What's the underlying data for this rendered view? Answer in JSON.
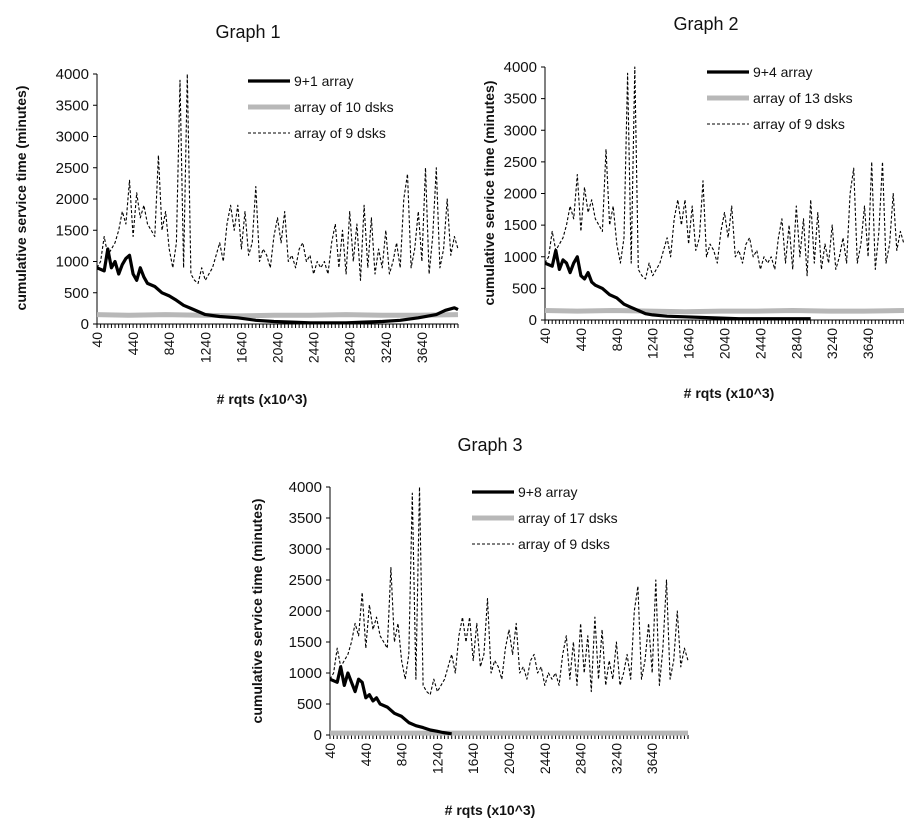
{
  "chart_data": [
    {
      "type": "line",
      "title": "Graph 1",
      "xlabel": "# rqts (x10^3)",
      "ylabel": "cumulative service time (minutes)",
      "ylim": [
        0,
        4000
      ],
      "yticks": [
        "0",
        "500",
        "1000",
        "1500",
        "2000",
        "2500",
        "3000",
        "3500",
        "4000"
      ],
      "xlim": [
        40,
        4040
      ],
      "xticks": [
        "40",
        "440",
        "840",
        "1240",
        "1640",
        "2040",
        "2440",
        "2840",
        "3240",
        "3640"
      ],
      "legend_position": "top-right",
      "series": [
        {
          "name": "9+1 array",
          "style": "thick-black",
          "x": [
            40,
            120,
            160,
            200,
            240,
            280,
            320,
            360,
            400,
            440,
            480,
            520,
            560,
            600,
            680,
            760,
            840,
            920,
            1000,
            1080,
            1160,
            1240,
            1400,
            1600,
            1800,
            2000,
            2200,
            2400,
            2600,
            2800,
            3000,
            3200,
            3400,
            3600,
            3800,
            3900,
            4000,
            4040
          ],
          "y": [
            900,
            850,
            1200,
            900,
            1000,
            800,
            950,
            1050,
            1100,
            800,
            700,
            900,
            750,
            650,
            600,
            500,
            450,
            380,
            300,
            250,
            200,
            150,
            120,
            100,
            60,
            40,
            30,
            20,
            20,
            20,
            30,
            40,
            60,
            100,
            150,
            220,
            260,
            230
          ]
        },
        {
          "name": "array of 10 dsks",
          "style": "thick-gray",
          "x": [
            40,
            400,
            800,
            1200,
            1600,
            2000,
            2400,
            2800,
            3200,
            3600,
            4040
          ],
          "y": [
            150,
            140,
            150,
            140,
            130,
            140,
            140,
            150,
            140,
            140,
            150
          ]
        },
        {
          "name": "array of 9 dsks",
          "style": "dashed-black",
          "x": [
            40,
            80,
            120,
            160,
            200,
            240,
            280,
            320,
            360,
            400,
            440,
            480,
            520,
            560,
            600,
            640,
            680,
            720,
            760,
            800,
            840,
            880,
            920,
            960,
            1000,
            1040,
            1080,
            1120,
            1160,
            1200,
            1240,
            1280,
            1320,
            1360,
            1400,
            1440,
            1480,
            1520,
            1560,
            1600,
            1640,
            1680,
            1720,
            1760,
            1800,
            1840,
            1880,
            1920,
            1960,
            2000,
            2040,
            2080,
            2120,
            2160,
            2200,
            2240,
            2280,
            2320,
            2360,
            2400,
            2440,
            2480,
            2520,
            2560,
            2600,
            2640,
            2680,
            2720,
            2760,
            2800,
            2840,
            2880,
            2920,
            2960,
            3000,
            3040,
            3080,
            3120,
            3160,
            3200,
            3240,
            3280,
            3320,
            3360,
            3400,
            3440,
            3480,
            3520,
            3560,
            3600,
            3640,
            3680,
            3720,
            3760,
            3800,
            3840,
            3880,
            3920,
            3960,
            4000,
            4040
          ],
          "y": [
            900,
            1000,
            1400,
            1100,
            1200,
            1300,
            1500,
            1800,
            1600,
            2300,
            1400,
            2100,
            1700,
            1900,
            1600,
            1500,
            1400,
            2700,
            1500,
            1800,
            1200,
            900,
            1300,
            3900,
            900,
            4000,
            800,
            700,
            650,
            900,
            700,
            800,
            900,
            1100,
            1300,
            1000,
            1600,
            1900,
            1500,
            1900,
            1200,
            1800,
            1100,
            1300,
            2200,
            1000,
            1200,
            1100,
            900,
            1400,
            1700,
            1300,
            1800,
            1000,
            1100,
            900,
            1200,
            1300,
            1000,
            1100,
            800,
            1000,
            900,
            1000,
            800,
            1300,
            1600,
            900,
            1500,
            800,
            1800,
            1000,
            1600,
            700,
            1900,
            900,
            1700,
            800,
            1200,
            900,
            1500,
            800,
            1000,
            1300,
            900,
            2000,
            2400,
            900,
            1200,
            1800,
            1000,
            2500,
            800,
            1400,
            2500,
            900,
            1200,
            2000,
            1100,
            1400,
            1200
          ]
        }
      ]
    },
    {
      "type": "line",
      "title": "Graph 2",
      "xlabel": "# rqts (x10^3)",
      "ylabel": "cumulative service time (minutes)",
      "ylim": [
        0,
        4000
      ],
      "yticks": [
        "0",
        "500",
        "1000",
        "1500",
        "2000",
        "2500",
        "3000",
        "3500",
        "4000"
      ],
      "xlim": [
        40,
        4040
      ],
      "xticks": [
        "40",
        "440",
        "840",
        "1240",
        "1640",
        "2040",
        "2440",
        "2840",
        "3240",
        "3640"
      ],
      "legend_position": "top-right",
      "series": [
        {
          "name": "9+4 array",
          "style": "thick-black",
          "x": [
            40,
            120,
            160,
            200,
            240,
            280,
            320,
            360,
            400,
            440,
            480,
            520,
            560,
            600,
            680,
            760,
            840,
            920,
            1000,
            1080,
            1160,
            1240,
            1400,
            1600,
            1800,
            2000,
            2200,
            2400,
            2600,
            2800,
            3000
          ],
          "y": [
            900,
            850,
            1100,
            800,
            950,
            900,
            750,
            900,
            1000,
            700,
            650,
            750,
            600,
            550,
            500,
            400,
            350,
            250,
            200,
            150,
            100,
            80,
            60,
            50,
            40,
            30,
            20,
            20,
            20,
            20,
            20
          ]
        },
        {
          "name": "array of 13 dsks",
          "style": "thick-gray",
          "x": [
            40,
            400,
            800,
            1200,
            1600,
            2000,
            2400,
            2800,
            3200,
            3600,
            4040
          ],
          "y": [
            150,
            140,
            150,
            140,
            130,
            140,
            140,
            150,
            140,
            140,
            150
          ]
        },
        {
          "name": "array of 9 dsks",
          "style": "dashed-black",
          "x": [
            40,
            80,
            120,
            160,
            200,
            240,
            280,
            320,
            360,
            400,
            440,
            480,
            520,
            560,
            600,
            640,
            680,
            720,
            760,
            800,
            840,
            880,
            920,
            960,
            1000,
            1040,
            1080,
            1120,
            1160,
            1200,
            1240,
            1280,
            1320,
            1360,
            1400,
            1440,
            1480,
            1520,
            1560,
            1600,
            1640,
            1680,
            1720,
            1760,
            1800,
            1840,
            1880,
            1920,
            1960,
            2000,
            2040,
            2080,
            2120,
            2160,
            2200,
            2240,
            2280,
            2320,
            2360,
            2400,
            2440,
            2480,
            2520,
            2560,
            2600,
            2640,
            2680,
            2720,
            2760,
            2800,
            2840,
            2880,
            2920,
            2960,
            3000,
            3040,
            3080,
            3120,
            3160,
            3200,
            3240,
            3280,
            3320,
            3360,
            3400,
            3440,
            3480,
            3520,
            3560,
            3600,
            3640,
            3680,
            3720,
            3760,
            3800,
            3840,
            3880,
            3920,
            3960,
            4000,
            4040
          ],
          "y": [
            900,
            1000,
            1400,
            1100,
            1200,
            1300,
            1500,
            1800,
            1600,
            2300,
            1400,
            2100,
            1700,
            1900,
            1600,
            1500,
            1400,
            2700,
            1500,
            1800,
            1200,
            900,
            1300,
            3900,
            900,
            4000,
            800,
            700,
            650,
            900,
            700,
            800,
            900,
            1100,
            1300,
            1000,
            1600,
            1900,
            1500,
            1900,
            1200,
            1800,
            1100,
            1300,
            2200,
            1000,
            1200,
            1100,
            900,
            1400,
            1700,
            1300,
            1800,
            1000,
            1100,
            900,
            1200,
            1300,
            1000,
            1100,
            800,
            1000,
            900,
            1000,
            800,
            1300,
            1600,
            900,
            1500,
            800,
            1800,
            1000,
            1600,
            700,
            1900,
            900,
            1700,
            800,
            1200,
            900,
            1500,
            800,
            1000,
            1300,
            900,
            2000,
            2400,
            900,
            1200,
            1800,
            1000,
            2500,
            800,
            1400,
            2500,
            900,
            1200,
            2000,
            1100,
            1400,
            1200
          ]
        }
      ]
    },
    {
      "type": "line",
      "title": "Graph 3",
      "xlabel": "# rqts (x10^3)",
      "ylabel": "cumulative service time (minutes)",
      "ylim": [
        0,
        4000
      ],
      "yticks": [
        "0",
        "500",
        "1000",
        "1500",
        "2000",
        "2500",
        "3000",
        "3500",
        "4000"
      ],
      "xlim": [
        40,
        4040
      ],
      "xticks": [
        "40",
        "440",
        "840",
        "1240",
        "1640",
        "2040",
        "2440",
        "2840",
        "3240",
        "3640"
      ],
      "legend_position": "top-right",
      "series": [
        {
          "name": "9+8 array",
          "style": "thick-black",
          "x": [
            40,
            120,
            160,
            200,
            240,
            280,
            320,
            360,
            400,
            440,
            480,
            520,
            560,
            600,
            680,
            760,
            840,
            920,
            1000,
            1080,
            1160,
            1240,
            1300,
            1400
          ],
          "y": [
            900,
            850,
            1100,
            800,
            1000,
            850,
            700,
            900,
            850,
            600,
            650,
            550,
            600,
            500,
            450,
            350,
            300,
            200,
            150,
            120,
            80,
            60,
            40,
            20
          ]
        },
        {
          "name": "array of 17 dsks",
          "style": "thick-gray",
          "x": [
            40,
            400,
            800,
            1200,
            1600,
            2000,
            2400,
            2800,
            3200,
            3600,
            4040
          ],
          "y": [
            30,
            30,
            30,
            30,
            30,
            30,
            30,
            30,
            30,
            30,
            30
          ]
        },
        {
          "name": "array of 9 dsks",
          "style": "dashed-black",
          "x": [
            40,
            80,
            120,
            160,
            200,
            240,
            280,
            320,
            360,
            400,
            440,
            480,
            520,
            560,
            600,
            640,
            680,
            720,
            760,
            800,
            840,
            880,
            920,
            960,
            1000,
            1040,
            1080,
            1120,
            1160,
            1200,
            1240,
            1280,
            1320,
            1360,
            1400,
            1440,
            1480,
            1520,
            1560,
            1600,
            1640,
            1680,
            1720,
            1760,
            1800,
            1840,
            1880,
            1920,
            1960,
            2000,
            2040,
            2080,
            2120,
            2160,
            2200,
            2240,
            2280,
            2320,
            2360,
            2400,
            2440,
            2480,
            2520,
            2560,
            2600,
            2640,
            2680,
            2720,
            2760,
            2800,
            2840,
            2880,
            2920,
            2960,
            3000,
            3040,
            3080,
            3120,
            3160,
            3200,
            3240,
            3280,
            3320,
            3360,
            3400,
            3440,
            3480,
            3520,
            3560,
            3600,
            3640,
            3680,
            3720,
            3760,
            3800,
            3840,
            3880,
            3920,
            3960,
            4000,
            4040
          ],
          "y": [
            900,
            1000,
            1400,
            1100,
            1200,
            1300,
            1500,
            1800,
            1600,
            2300,
            1400,
            2100,
            1700,
            1900,
            1600,
            1500,
            1400,
            2700,
            1500,
            1800,
            1200,
            900,
            1300,
            3900,
            900,
            4000,
            800,
            700,
            650,
            900,
            700,
            800,
            900,
            1100,
            1300,
            1000,
            1600,
            1900,
            1500,
            1900,
            1200,
            1800,
            1100,
            1300,
            2200,
            1000,
            1200,
            1100,
            900,
            1400,
            1700,
            1300,
            1800,
            1000,
            1100,
            900,
            1200,
            1300,
            1000,
            1100,
            800,
            1000,
            900,
            1000,
            800,
            1300,
            1600,
            900,
            1500,
            800,
            1800,
            1000,
            1600,
            700,
            1900,
            900,
            1700,
            800,
            1200,
            900,
            1500,
            800,
            1000,
            1300,
            900,
            2000,
            2400,
            900,
            1200,
            1800,
            1000,
            2500,
            800,
            1400,
            2500,
            900,
            1200,
            2000,
            1100,
            1400,
            1200
          ]
        }
      ]
    }
  ]
}
